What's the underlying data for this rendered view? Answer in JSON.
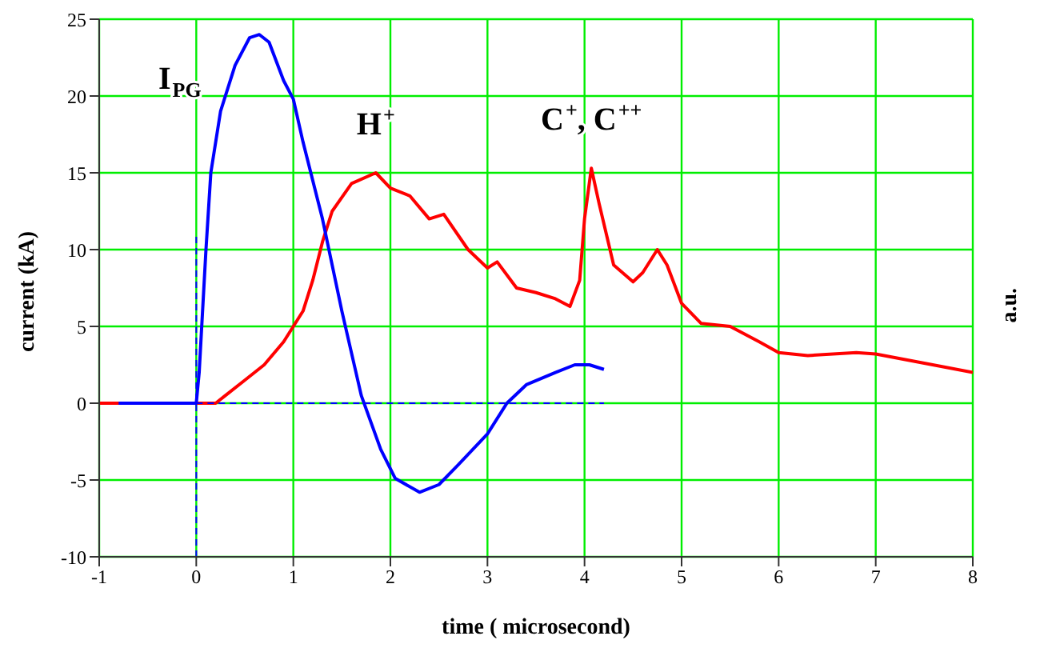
{
  "chart_data": {
    "type": "line",
    "xlabel": "time ( microsecond)",
    "ylabel": "current (kA)",
    "y2label": "a.u.",
    "xlim": [
      -1,
      8
    ],
    "xticks": [
      -1,
      0,
      1,
      2,
      3,
      4,
      5,
      6,
      7,
      8
    ],
    "ylim": [
      -10,
      25
    ],
    "yticks": [
      -10,
      -5,
      0,
      5,
      10,
      15,
      20,
      25
    ],
    "grid": true,
    "marker": "none",
    "series": [
      {
        "color": "#ff0000",
        "x": [
          -1,
          -0.5,
          0,
          0.2,
          0.3,
          0.5,
          0.7,
          0.9,
          1.0,
          1.1,
          1.2,
          1.3,
          1.4,
          1.6,
          1.85,
          2.0,
          2.2,
          2.4,
          2.55,
          2.8,
          3.0,
          3.1,
          3.3,
          3.5,
          3.7,
          3.85,
          3.95,
          4.0,
          4.07,
          4.15,
          4.3,
          4.5,
          4.6,
          4.75,
          4.85,
          5.0,
          5.2,
          5.5,
          5.8,
          6.0,
          6.3,
          6.8,
          7.0,
          7.5,
          8.0
        ],
        "values": [
          0,
          0,
          0,
          0,
          0.5,
          1.5,
          2.5,
          4,
          5,
          6,
          8,
          10.5,
          12.5,
          14.3,
          15,
          14,
          13.5,
          12,
          12.3,
          10,
          8.8,
          9.2,
          7.5,
          7.2,
          6.8,
          6.3,
          8,
          12,
          15.3,
          13,
          9,
          7.9,
          8.5,
          10,
          9,
          6.5,
          5.2,
          5,
          4,
          3.3,
          3.1,
          3.3,
          3.2,
          2.6,
          2
        ]
      },
      {
        "color": "#0000ff",
        "x": [
          -0.8,
          -0.4,
          0,
          0.03,
          0.1,
          0.15,
          0.25,
          0.4,
          0.55,
          0.65,
          0.75,
          0.9,
          1.0,
          1.1,
          1.3,
          1.5,
          1.7,
          1.9,
          2.05,
          2.3,
          2.5,
          2.7,
          3.0,
          3.2,
          3.4,
          3.7,
          3.9,
          4.05,
          4.2
        ],
        "values": [
          0,
          0,
          0,
          2,
          10,
          15,
          19,
          22,
          23.8,
          24,
          23.5,
          21,
          19.8,
          17,
          12,
          6,
          0.5,
          -3,
          -4.9,
          -5.8,
          -5.3,
          -4,
          -2,
          0,
          1.2,
          2,
          2.5,
          2.5,
          2.2
        ]
      },
      {
        "color": "#0000ff",
        "line_style": "dashed",
        "x": [
          0,
          4.2
        ],
        "values": [
          0,
          0
        ]
      },
      {
        "color": "#0000ff",
        "line_style": "dashed",
        "x": [
          0,
          0
        ],
        "values": [
          -10,
          11
        ]
      }
    ],
    "annotations": [
      {
        "text": "I$_{PG}$",
        "x": 0.25,
        "y": 19
      },
      {
        "text": "H$^{+}$",
        "x": 1.85,
        "y": 15
      },
      {
        "text": "C$^{+}$, C$^{++}$",
        "x": 4.07,
        "y": 15.3
      }
    ]
  }
}
